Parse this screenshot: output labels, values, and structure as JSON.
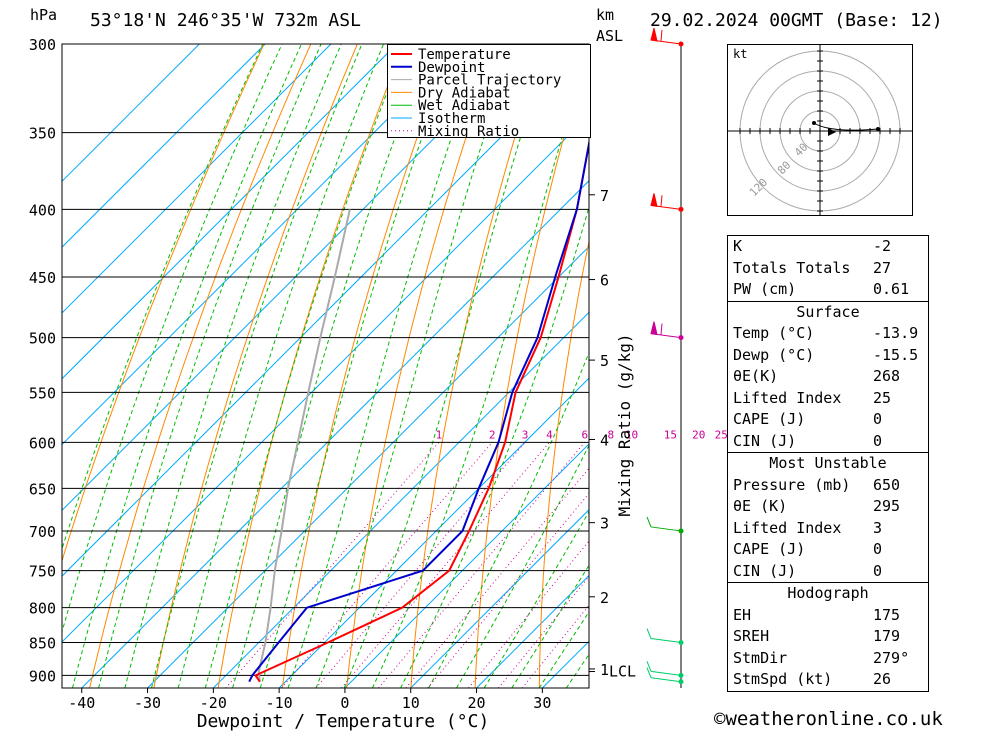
{
  "header": {
    "units_p": "hPa",
    "location": "53°18'N  246°35'W  732m  ASL",
    "units_km": "km",
    "units_asl": "ASL",
    "datetime": "29.02.2024  00GMT  (Base: 12)"
  },
  "chart_data": {
    "type": "skew-t",
    "xlabel": "Dewpoint / Temperature (°C)",
    "ylabel_right": "Mixing Ratio (g/kg)",
    "pressure_ticks": [
      300,
      350,
      400,
      450,
      500,
      550,
      600,
      650,
      700,
      750,
      800,
      850,
      900
    ],
    "temperature_ticks": [
      -40,
      -30,
      -20,
      -10,
      0,
      10,
      20,
      30
    ],
    "xlim_at_bottom": [
      -43,
      38
    ],
    "ylim_hpa": [
      920,
      300
    ],
    "km_ticks": [
      {
        "label": "1",
        "p": 890
      },
      {
        "label": "2",
        "p": 785
      },
      {
        "label": "3",
        "p": 690
      },
      {
        "label": "4",
        "p": 597
      },
      {
        "label": "5",
        "p": 520
      },
      {
        "label": "6",
        "p": 452
      },
      {
        "label": "7",
        "p": 390
      }
    ],
    "lcl_label": "LCL",
    "lcl_p": 894,
    "mixing_ratio_labels": [
      "1",
      "2",
      "3",
      "4",
      "6",
      "8",
      "10",
      "15",
      "20",
      "25"
    ],
    "legend": [
      "Temperature",
      "Dewpoint",
      "Parcel Trajectory",
      "Dry Adiabat",
      "Wet Adiabat",
      "Isotherm",
      "Mixing Ratio"
    ],
    "colors": {
      "temperature": "#ff0000",
      "dewpoint": "#0000cc",
      "parcel": "#aaaaaa",
      "dry_adiabat": "#ff8800",
      "wet_adiabat": "#00bb00",
      "isotherm": "#00aaff",
      "mixing_ratio": "#cc0099"
    },
    "temperature_profile": [
      {
        "p": 910,
        "t": -13.9
      },
      {
        "p": 900,
        "t": -15.5
      },
      {
        "p": 850,
        "t": -9.5
      },
      {
        "p": 800,
        "t": -3.5
      },
      {
        "p": 750,
        "t": -2.0
      },
      {
        "p": 700,
        "t": -5.0
      },
      {
        "p": 650,
        "t": -8.5
      },
      {
        "p": 600,
        "t": -13.0
      },
      {
        "p": 550,
        "t": -19.0
      },
      {
        "p": 500,
        "t": -23.5
      },
      {
        "p": 450,
        "t": -30.0
      },
      {
        "p": 400,
        "t": -37.5
      },
      {
        "p": 350,
        "t": -47.0
      },
      {
        "p": 300,
        "t": -57.0
      }
    ],
    "dewpoint_profile": [
      {
        "p": 910,
        "t": -15.5
      },
      {
        "p": 900,
        "t": -16.0
      },
      {
        "p": 850,
        "t": -17.0
      },
      {
        "p": 800,
        "t": -18.0
      },
      {
        "p": 750,
        "t": -6.0
      },
      {
        "p": 700,
        "t": -6.0
      },
      {
        "p": 650,
        "t": -10.0
      },
      {
        "p": 600,
        "t": -14.0
      },
      {
        "p": 550,
        "t": -19.5
      },
      {
        "p": 500,
        "t": -24.0
      },
      {
        "p": 450,
        "t": -30.5
      },
      {
        "p": 400,
        "t": -37.5
      },
      {
        "p": 350,
        "t": -47.0
      },
      {
        "p": 300,
        "t": -57.5
      }
    ],
    "parcel_profile": [
      {
        "p": 910,
        "t": -13.9
      },
      {
        "p": 894,
        "t": -15.6
      },
      {
        "p": 850,
        "t": -19.0
      },
      {
        "p": 800,
        "t": -23.5
      },
      {
        "p": 750,
        "t": -28.5
      },
      {
        "p": 700,
        "t": -33.5
      },
      {
        "p": 650,
        "t": -39.0
      },
      {
        "p": 600,
        "t": -44.5
      },
      {
        "p": 550,
        "t": -50.5
      },
      {
        "p": 500,
        "t": -57.0
      },
      {
        "p": 450,
        "t": -64.0
      },
      {
        "p": 400,
        "t": -72.0
      }
    ],
    "wind_barb_levels_hpa": [
      300,
      400,
      500,
      700,
      850,
      900,
      910
    ]
  },
  "hodograph": {
    "unit": "kt",
    "ring_labels": [
      "40",
      "80",
      "120"
    ]
  },
  "indices": {
    "k_label": "K",
    "k_value": "-2",
    "tt_label": "Totals Totals",
    "tt_value": "27",
    "pw_label": "PW (cm)",
    "pw_value": "0.61",
    "surface_title": "Surface",
    "s_temp_label": "Temp (°C)",
    "s_temp_value": "-13.9",
    "s_dewp_label": "Dewp (°C)",
    "s_dewp_value": "-15.5",
    "s_theta_label": "θE(K)",
    "s_theta_value": "268",
    "s_li_label": "Lifted Index",
    "s_li_value": "25",
    "s_cape_label": "CAPE (J)",
    "s_cape_value": "0",
    "s_cin_label": "CIN (J)",
    "s_cin_value": "0",
    "mu_title": "Most Unstable",
    "mu_p_label": "Pressure (mb)",
    "mu_p_value": "650",
    "mu_theta_label": "θE (K)",
    "mu_theta_value": "295",
    "mu_li_label": "Lifted Index",
    "mu_li_value": "3",
    "mu_cape_label": "CAPE (J)",
    "mu_cape_value": "0",
    "mu_cin_label": "CIN (J)",
    "mu_cin_value": "0",
    "hodo_title": "Hodograph",
    "eh_label": "EH",
    "eh_value": "175",
    "sreh_label": "SREH",
    "sreh_value": "179",
    "stmdir_label": "StmDir",
    "stmdir_value": "279°",
    "stmspd_label": "StmSpd (kt)",
    "stmspd_value": "26"
  },
  "footer": {
    "copyright_symbol": "©",
    "site": "weatheronline.co.uk"
  }
}
